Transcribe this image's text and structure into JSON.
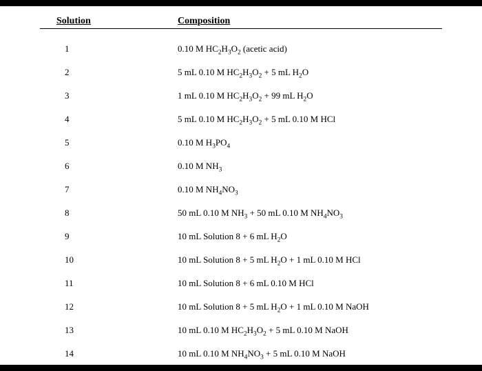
{
  "headers": {
    "solution": "Solution",
    "composition": "Composition"
  },
  "rows": [
    {
      "solution": "1",
      "composition_html": "0.10 M HC<sub>2</sub>H<sub>3</sub>O<sub>2</sub> (acetic acid)"
    },
    {
      "solution": "2",
      "composition_html": "5 mL 0.10 M HC<sub>2</sub>H<sub>3</sub>O<sub>2</sub> + 5 mL H<sub>2</sub>O"
    },
    {
      "solution": "3",
      "composition_html": "1 mL 0.10 M HC<sub>2</sub>H<sub>3</sub>O<sub>2</sub> + 99 mL H<sub>2</sub>O"
    },
    {
      "solution": "4",
      "composition_html": "5 mL 0.10 M HC<sub>2</sub>H<sub>3</sub>O<sub>2</sub> + 5 mL 0.10 M HCl"
    },
    {
      "solution": "5",
      "composition_html": "0.10 M H<sub>3</sub>PO<sub>4</sub>"
    },
    {
      "solution": "6",
      "composition_html": "0.10 M NH<sub>3</sub>"
    },
    {
      "solution": "7",
      "composition_html": "0.10 M NH<sub>4</sub>NO<sub>3</sub>"
    },
    {
      "solution": "8",
      "composition_html": "50 mL 0.10 M NH<sub>3</sub> + 50 mL 0.10 M NH<sub>4</sub>NO<sub>3</sub>"
    },
    {
      "solution": "9",
      "composition_html": "10 mL Solution 8 + 6 mL H<sub>2</sub>O"
    },
    {
      "solution": "10",
      "composition_html": "10 mL Solution 8 + 5 mL H<sub>2</sub>O + 1 mL 0.10 M HCl"
    },
    {
      "solution": "11",
      "composition_html": "10 mL Solution 8 + 6 mL 0.10 M HCl"
    },
    {
      "solution": "12",
      "composition_html": "10 mL Solution 8 + 5 mL H<sub>2</sub>O + 1 mL 0.10 M NaOH"
    },
    {
      "solution": "13",
      "composition_html": "10 mL 0.10 M HC<sub>2</sub>H<sub>3</sub>O<sub>2</sub> + 5 mL 0.10 M NaOH"
    },
    {
      "solution": "14",
      "composition_html": "10 mL 0.10 M NH<sub>4</sub>NO<sub>3</sub> + 5 mL 0.10 M NaOH"
    }
  ],
  "style": {
    "background_body": "#000000",
    "background_page": "#ffffff",
    "text_color": "#000000",
    "font_family": "Times New Roman",
    "header_font_size": 14,
    "row_font_size": 13,
    "border_color": "#000000"
  }
}
